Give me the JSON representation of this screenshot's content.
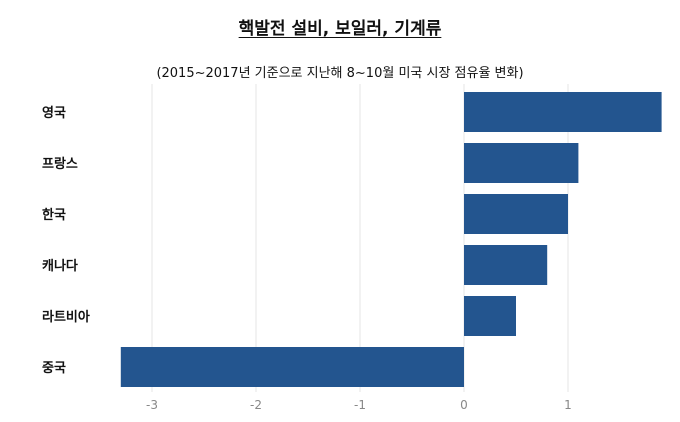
{
  "chart_data": {
    "type": "bar",
    "orientation": "horizontal",
    "title": "핵발전 설비, 보일러, 기계류",
    "subtitle": "(2015~2017년 기준으로 지난해 8~10월 미국 시장 점유율 변화)",
    "categories": [
      "영국",
      "프랑스",
      "한국",
      "캐나다",
      "라트비아",
      "중국"
    ],
    "values": [
      1.9,
      1.1,
      1.0,
      0.8,
      0.5,
      -3.3
    ],
    "xlim": [
      -3.5,
      1.95
    ],
    "xticks": [
      -3,
      -2,
      -1,
      0,
      1
    ],
    "xtick_labels": [
      "-3",
      "-2",
      "-1",
      "0",
      "1"
    ],
    "grid": true,
    "bar_color": "#23558F",
    "xlabel": "",
    "ylabel": ""
  }
}
